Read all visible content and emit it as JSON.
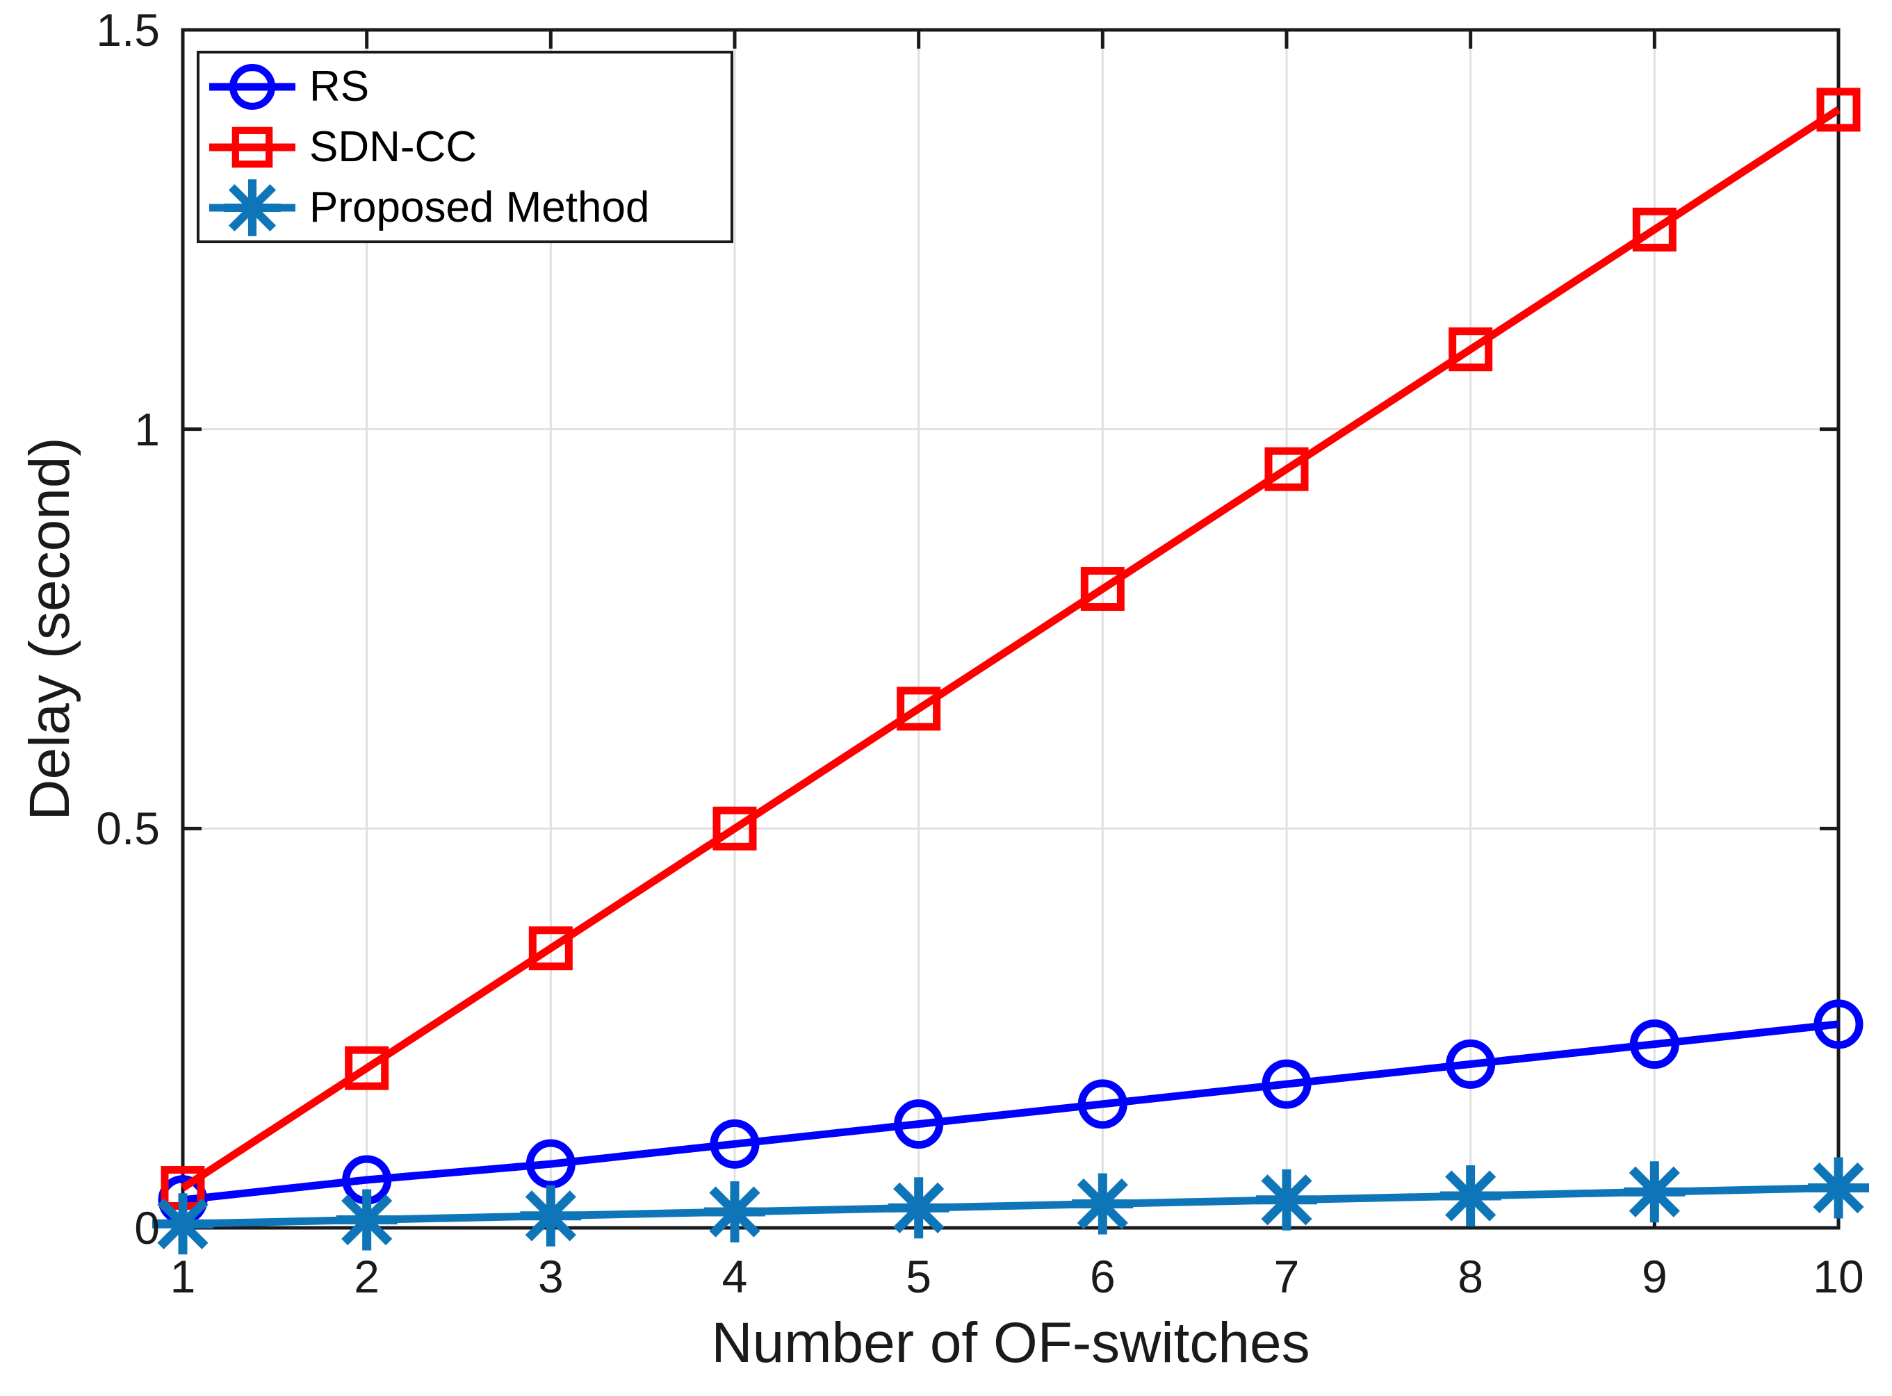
{
  "chart_data": {
    "type": "line",
    "title": "",
    "xlabel": "Number of OF-switches",
    "ylabel": "Delay (second)",
    "xlim": [
      1,
      10
    ],
    "ylim": [
      0,
      1.5
    ],
    "xticks": [
      1,
      2,
      3,
      4,
      5,
      6,
      7,
      8,
      9,
      10
    ],
    "xtick_labels": [
      "1",
      "2",
      "3",
      "4",
      "5",
      "6",
      "7",
      "8",
      "9",
      "10"
    ],
    "yticks": [
      0,
      0.5,
      1,
      1.5
    ],
    "ytick_labels": [
      "0",
      "0.5",
      "1",
      "1.5"
    ],
    "grid": true,
    "legend_position": "top-left",
    "x": [
      1,
      2,
      3,
      4,
      5,
      6,
      7,
      8,
      9,
      10
    ],
    "series": [
      {
        "name": "RS",
        "color": "#0000FF",
        "marker": "circle",
        "values": [
          0.035,
          0.06,
          0.08,
          0.105,
          0.13,
          0.155,
          0.18,
          0.205,
          0.23,
          0.255
        ]
      },
      {
        "name": "SDN-CC",
        "color": "#FF0000",
        "marker": "square",
        "values": [
          0.05,
          0.2,
          0.35,
          0.5,
          0.65,
          0.8,
          0.95,
          1.1,
          1.25,
          1.4
        ]
      },
      {
        "name": "Proposed Method",
        "color": "#0E76B8",
        "marker": "asterisk",
        "values": [
          0.005,
          0.01,
          0.015,
          0.02,
          0.025,
          0.03,
          0.035,
          0.04,
          0.045,
          0.05
        ]
      }
    ],
    "colors": {
      "axis": "#1A1A1A",
      "grid": "#E0E0E0",
      "background": "#FFFFFF"
    }
  }
}
